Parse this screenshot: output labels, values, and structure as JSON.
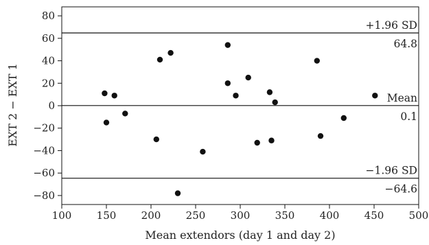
{
  "chart_data": {
    "type": "scatter",
    "xlabel": "Mean extendors (day 1 and day 2)",
    "ylabel": "EXT 2 − EXT 1",
    "xlim": [
      100,
      500
    ],
    "ylim": [
      -88,
      88
    ],
    "xticks": [
      100,
      150,
      200,
      250,
      300,
      350,
      400,
      450,
      500
    ],
    "yticks": [
      -80,
      -60,
      -40,
      -20,
      0,
      20,
      40,
      60,
      80
    ],
    "grid": false,
    "points": [
      {
        "x": 148,
        "y": 11
      },
      {
        "x": 150,
        "y": -15
      },
      {
        "x": 159,
        "y": 9
      },
      {
        "x": 171,
        "y": -7
      },
      {
        "x": 206,
        "y": -30
      },
      {
        "x": 210,
        "y": 41
      },
      {
        "x": 222,
        "y": 47
      },
      {
        "x": 230,
        "y": -78
      },
      {
        "x": 258,
        "y": -41
      },
      {
        "x": 286,
        "y": 54
      },
      {
        "x": 286,
        "y": 20
      },
      {
        "x": 295,
        "y": 9
      },
      {
        "x": 309,
        "y": 25
      },
      {
        "x": 319,
        "y": -33
      },
      {
        "x": 333,
        "y": 12
      },
      {
        "x": 335,
        "y": -31
      },
      {
        "x": 339,
        "y": 3
      },
      {
        "x": 386,
        "y": 40
      },
      {
        "x": 390,
        "y": -27
      },
      {
        "x": 416,
        "y": -11
      },
      {
        "x": 451,
        "y": 9
      }
    ],
    "reference_lines": [
      {
        "y": 64.8,
        "label": "+1.96 SD",
        "value_label": "64.8"
      },
      {
        "y": 0.1,
        "label": "Mean",
        "value_label": "0.1"
      },
      {
        "y": -64.6,
        "label": "−1.96 SD",
        "value_label": "−64.6"
      }
    ],
    "colors": {
      "points": "#111111",
      "lines": "#111111",
      "text": "#222222"
    }
  }
}
